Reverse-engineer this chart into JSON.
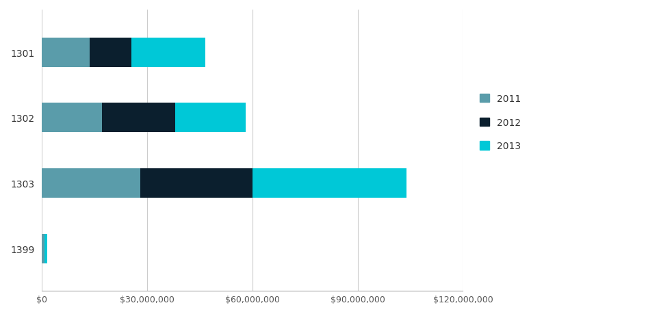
{
  "categories": [
    "1301",
    "1302",
    "1303",
    "1399"
  ],
  "series": {
    "2011": [
      13500000,
      17000000,
      28000000,
      600000
    ],
    "2012": [
      12000000,
      21000000,
      32000000,
      150000
    ],
    "2013": [
      21000000,
      20000000,
      44000000,
      800000
    ]
  },
  "colors": {
    "2011": "#5a9caa",
    "2012": "#0b1f2e",
    "2013": "#00c8d7"
  },
  "legend_labels": [
    "2011",
    "2012",
    "2013"
  ],
  "xlim": [
    0,
    120000000
  ],
  "xticks": [
    0,
    30000000,
    60000000,
    90000000,
    120000000
  ],
  "xtick_labels": [
    "$0",
    "$30,000,000",
    "$60,000,000",
    "$90,000,000",
    "$120,000,000"
  ],
  "background_color": "#ffffff",
  "bar_height": 0.45,
  "figsize": [
    9.45,
    4.6
  ],
  "dpi": 100
}
